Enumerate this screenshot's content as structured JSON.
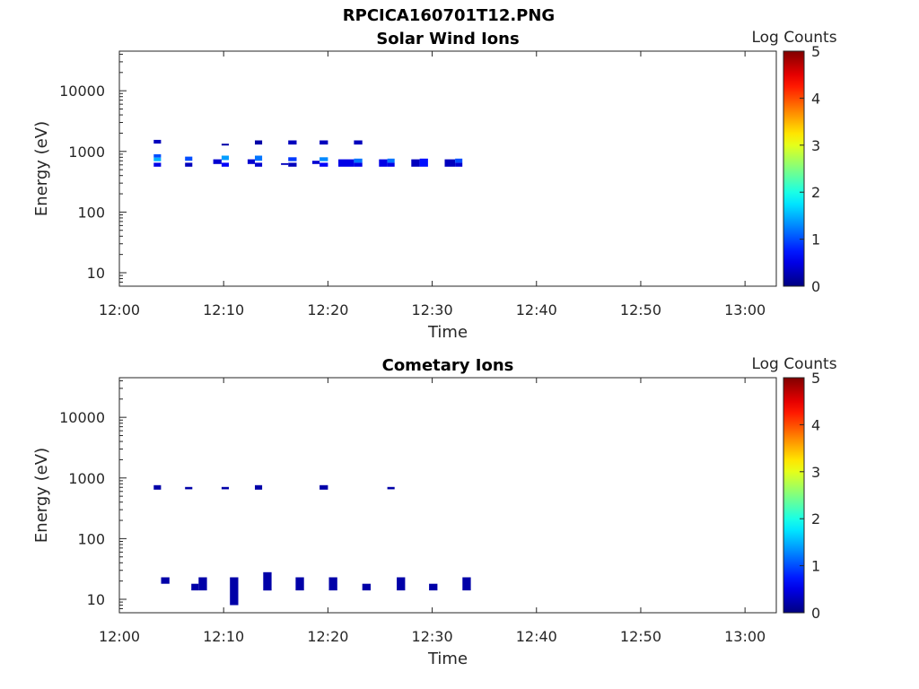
{
  "figure_title": "RPCICA160701T12.PNG",
  "chart_data": [
    {
      "type": "heatmap",
      "title": "Solar Wind Ions",
      "xlabel": "Time",
      "ylabel": "Energy (eV)",
      "y_scale": "log",
      "xlim": [
        "12:00",
        "13:03"
      ],
      "ylim": [
        6,
        45000
      ],
      "xticks": [
        "12:00",
        "12:10",
        "12:20",
        "12:30",
        "12:40",
        "12:50",
        "13:00"
      ],
      "yticks": [
        "10",
        "100",
        "1000",
        "10000"
      ],
      "colorbar": {
        "label": "Log Counts",
        "range": [
          0,
          5
        ],
        "ticks": [
          "0",
          "1",
          "2",
          "3",
          "4",
          "5"
        ],
        "colormap": "jet"
      },
      "cells": [
        {
          "t0": "12:03.3",
          "t1": "12:04.0",
          "e0": 1350,
          "e1": 1550,
          "v": 0.3
        },
        {
          "t0": "12:03.3",
          "t1": "12:04.0",
          "e0": 790,
          "e1": 900,
          "v": 1.0
        },
        {
          "t0": "12:03.3",
          "t1": "12:04.0",
          "e0": 690,
          "e1": 790,
          "v": 1.5
        },
        {
          "t0": "12:03.3",
          "t1": "12:04.0",
          "e0": 560,
          "e1": 650,
          "v": 0.5
        },
        {
          "t0": "12:06.3",
          "t1": "12:07.0",
          "e0": 700,
          "e1": 820,
          "v": 1.0
        },
        {
          "t0": "12:06.3",
          "t1": "12:07.0",
          "e0": 560,
          "e1": 650,
          "v": 0.3
        },
        {
          "t0": "12:09.0",
          "t1": "12:09.8",
          "e0": 620,
          "e1": 740,
          "v": 0.4
        },
        {
          "t0": "12:09.8",
          "t1": "12:10.5",
          "e0": 1250,
          "e1": 1340,
          "v": 0.2
        },
        {
          "t0": "12:09.8",
          "t1": "12:10.5",
          "e0": 720,
          "e1": 850,
          "v": 1.4
        },
        {
          "t0": "12:09.8",
          "t1": "12:10.5",
          "e0": 560,
          "e1": 650,
          "v": 0.6
        },
        {
          "t0": "12:12.3",
          "t1": "12:13.0",
          "e0": 620,
          "e1": 740,
          "v": 0.4
        },
        {
          "t0": "12:13.0",
          "t1": "12:13.7",
          "e0": 1300,
          "e1": 1520,
          "v": 0.2
        },
        {
          "t0": "12:13.0",
          "t1": "12:13.7",
          "e0": 700,
          "e1": 850,
          "v": 1.2
        },
        {
          "t0": "12:13.0",
          "t1": "12:13.7",
          "e0": 560,
          "e1": 650,
          "v": 0.4
        },
        {
          "t0": "12:15.5",
          "t1": "12:16.2",
          "e0": 600,
          "e1": 640,
          "v": 0.3
        },
        {
          "t0": "12:16.2",
          "t1": "12:17.0",
          "e0": 1300,
          "e1": 1520,
          "v": 0.3
        },
        {
          "t0": "12:16.2",
          "t1": "12:17.0",
          "e0": 690,
          "e1": 800,
          "v": 0.9
        },
        {
          "t0": "12:16.2",
          "t1": "12:17.0",
          "e0": 560,
          "e1": 650,
          "v": 0.3
        },
        {
          "t0": "12:18.5",
          "t1": "12:19.2",
          "e0": 620,
          "e1": 700,
          "v": 0.4
        },
        {
          "t0": "12:19.2",
          "t1": "12:20.0",
          "e0": 1300,
          "e1": 1520,
          "v": 0.3
        },
        {
          "t0": "12:19.2",
          "t1": "12:20.0",
          "e0": 690,
          "e1": 800,
          "v": 1.3
        },
        {
          "t0": "12:19.2",
          "t1": "12:20.0",
          "e0": 560,
          "e1": 650,
          "v": 0.6
        },
        {
          "t0": "12:21.0",
          "t1": "12:22.5",
          "e0": 560,
          "e1": 740,
          "v": 0.5
        },
        {
          "t0": "12:22.5",
          "t1": "12:23.3",
          "e0": 1300,
          "e1": 1520,
          "v": 0.3
        },
        {
          "t0": "12:22.5",
          "t1": "12:23.3",
          "e0": 650,
          "e1": 760,
          "v": 1.2
        },
        {
          "t0": "12:22.5",
          "t1": "12:23.3",
          "e0": 560,
          "e1": 650,
          "v": 0.5
        },
        {
          "t0": "12:24.9",
          "t1": "12:25.7",
          "e0": 560,
          "e1": 740,
          "v": 0.5
        },
        {
          "t0": "12:25.7",
          "t1": "12:26.4",
          "e0": 650,
          "e1": 760,
          "v": 1.2
        },
        {
          "t0": "12:25.7",
          "t1": "12:26.4",
          "e0": 560,
          "e1": 650,
          "v": 0.5
        },
        {
          "t0": "12:28.0",
          "t1": "12:28.8",
          "e0": 560,
          "e1": 740,
          "v": 0.3
        },
        {
          "t0": "12:28.8",
          "t1": "12:29.6",
          "e0": 560,
          "e1": 760,
          "v": 0.7
        },
        {
          "t0": "12:31.2",
          "t1": "12:32.2",
          "e0": 560,
          "e1": 740,
          "v": 0.3
        },
        {
          "t0": "12:32.2",
          "t1": "12:32.9",
          "e0": 650,
          "e1": 760,
          "v": 1.0
        },
        {
          "t0": "12:32.2",
          "t1": "12:32.9",
          "e0": 560,
          "e1": 650,
          "v": 0.4
        }
      ]
    },
    {
      "type": "heatmap",
      "title": "Cometary Ions",
      "xlabel": "Time",
      "ylabel": "Energy (eV)",
      "y_scale": "log",
      "xlim": [
        "12:00",
        "13:03"
      ],
      "ylim": [
        6,
        45000
      ],
      "xticks": [
        "12:00",
        "12:10",
        "12:20",
        "12:30",
        "12:40",
        "12:50",
        "13:00"
      ],
      "yticks": [
        "10",
        "100",
        "1000",
        "10000"
      ],
      "colorbar": {
        "label": "Log Counts",
        "range": [
          0,
          5
        ],
        "ticks": [
          "0",
          "1",
          "2",
          "3",
          "4",
          "5"
        ],
        "colormap": "jet"
      },
      "cells": [
        {
          "t0": "12:03.3",
          "t1": "12:04.0",
          "e0": 640,
          "e1": 760,
          "v": 0.2
        },
        {
          "t0": "12:06.3",
          "t1": "12:07.0",
          "e0": 650,
          "e1": 710,
          "v": 0.2
        },
        {
          "t0": "12:09.8",
          "t1": "12:10.5",
          "e0": 650,
          "e1": 710,
          "v": 0.2
        },
        {
          "t0": "12:13.0",
          "t1": "12:13.7",
          "e0": 640,
          "e1": 760,
          "v": 0.2
        },
        {
          "t0": "12:19.2",
          "t1": "12:20.0",
          "e0": 640,
          "e1": 760,
          "v": 0.2
        },
        {
          "t0": "12:25.7",
          "t1": "12:26.4",
          "e0": 650,
          "e1": 710,
          "v": 0.2
        },
        {
          "t0": "12:04.0",
          "t1": "12:04.8",
          "e0": 18,
          "e1": 23,
          "v": 0.2
        },
        {
          "t0": "12:06.9",
          "t1": "12:07.6",
          "e0": 14,
          "e1": 18,
          "v": 0.2
        },
        {
          "t0": "12:07.6",
          "t1": "12:08.4",
          "e0": 14,
          "e1": 23,
          "v": 0.2
        },
        {
          "t0": "12:10.6",
          "t1": "12:11.4",
          "e0": 8,
          "e1": 23,
          "v": 0.2
        },
        {
          "t0": "12:13.8",
          "t1": "12:14.6",
          "e0": 14,
          "e1": 28,
          "v": 0.2
        },
        {
          "t0": "12:16.9",
          "t1": "12:17.7",
          "e0": 14,
          "e1": 23,
          "v": 0.2
        },
        {
          "t0": "12:20.1",
          "t1": "12:20.9",
          "e0": 14,
          "e1": 23,
          "v": 0.2
        },
        {
          "t0": "12:23.3",
          "t1": "12:24.1",
          "e0": 14,
          "e1": 18,
          "v": 0.2
        },
        {
          "t0": "12:26.6",
          "t1": "12:27.4",
          "e0": 14,
          "e1": 23,
          "v": 0.2
        },
        {
          "t0": "12:29.7",
          "t1": "12:30.5",
          "e0": 14,
          "e1": 18,
          "v": 0.2
        },
        {
          "t0": "12:32.9",
          "t1": "12:33.7",
          "e0": 14,
          "e1": 23,
          "v": 0.2
        }
      ]
    }
  ]
}
